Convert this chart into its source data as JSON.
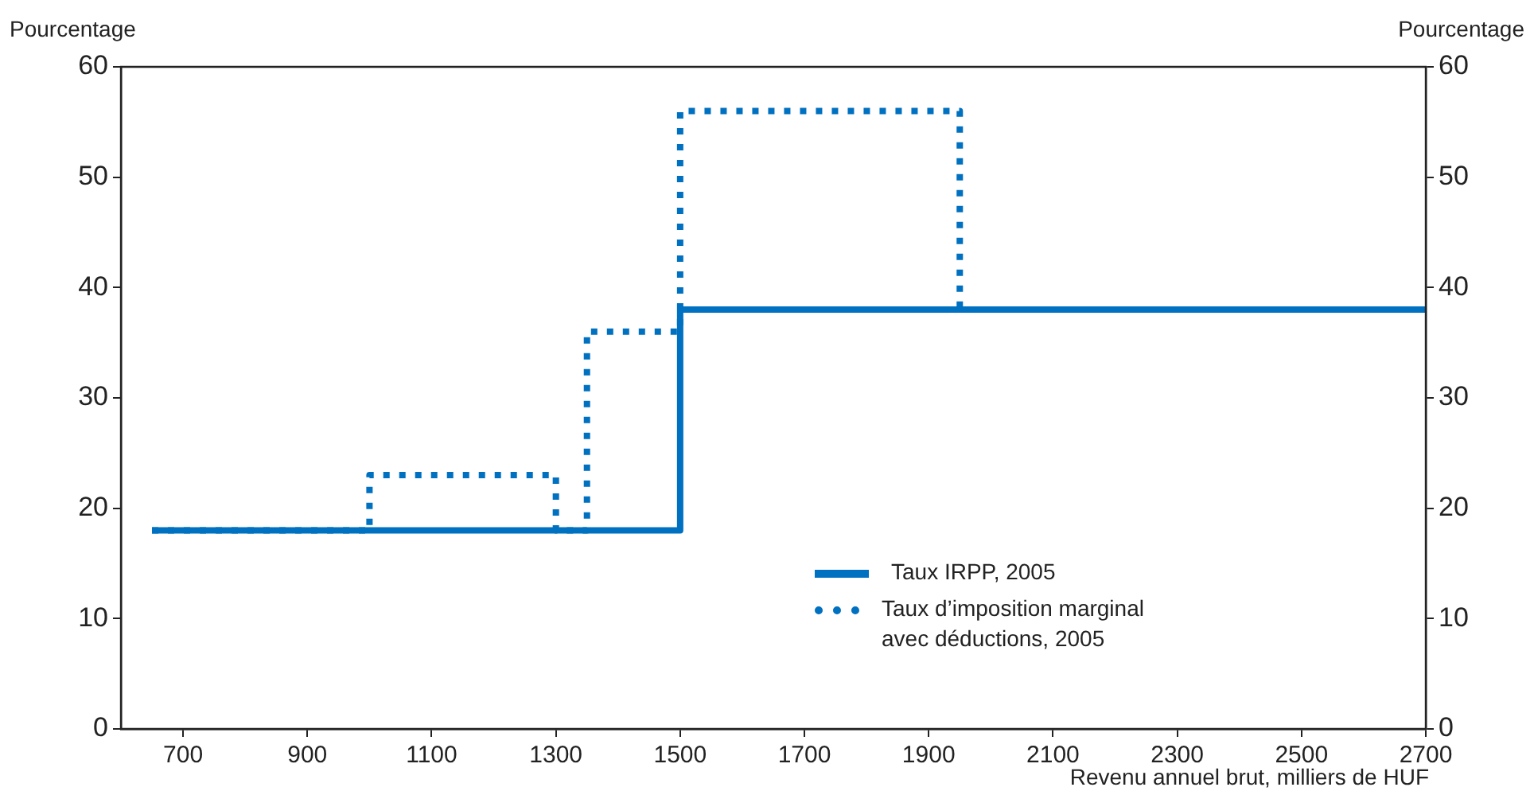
{
  "chart_data": {
    "type": "step",
    "xlabel": "Revenu annuel brut, milliers de HUF",
    "ylabel": "Pourcentage",
    "y2label": "Pourcentage",
    "xlim": [
      600,
      2700
    ],
    "xticks": [
      700,
      900,
      1100,
      1300,
      1500,
      1700,
      1900,
      2100,
      2300,
      2500,
      2700
    ],
    "ylim": [
      0,
      60
    ],
    "yticks": [
      0,
      10,
      20,
      30,
      40,
      50,
      60
    ],
    "y2lim": [
      0,
      60
    ],
    "y2ticks": [
      0,
      10,
      20,
      30,
      40,
      50,
      60
    ],
    "legend": "bottom right",
    "marker": "none",
    "series": [
      {
        "name": "Taux IRPP, 2005",
        "color": "#0070c0",
        "line_style": "solid",
        "x": [
          650,
          1500,
          2700
        ],
        "values": [
          18,
          38,
          38
        ]
      },
      {
        "name": "Taux d’imposition marginal avec déductions, 2005",
        "color": "#0070c0",
        "line_style": "dotted",
        "x": [
          650,
          1000,
          1300,
          1350,
          1500,
          1950,
          2700
        ],
        "values": [
          18,
          23,
          18,
          36,
          56,
          38,
          38
        ]
      }
    ]
  }
}
